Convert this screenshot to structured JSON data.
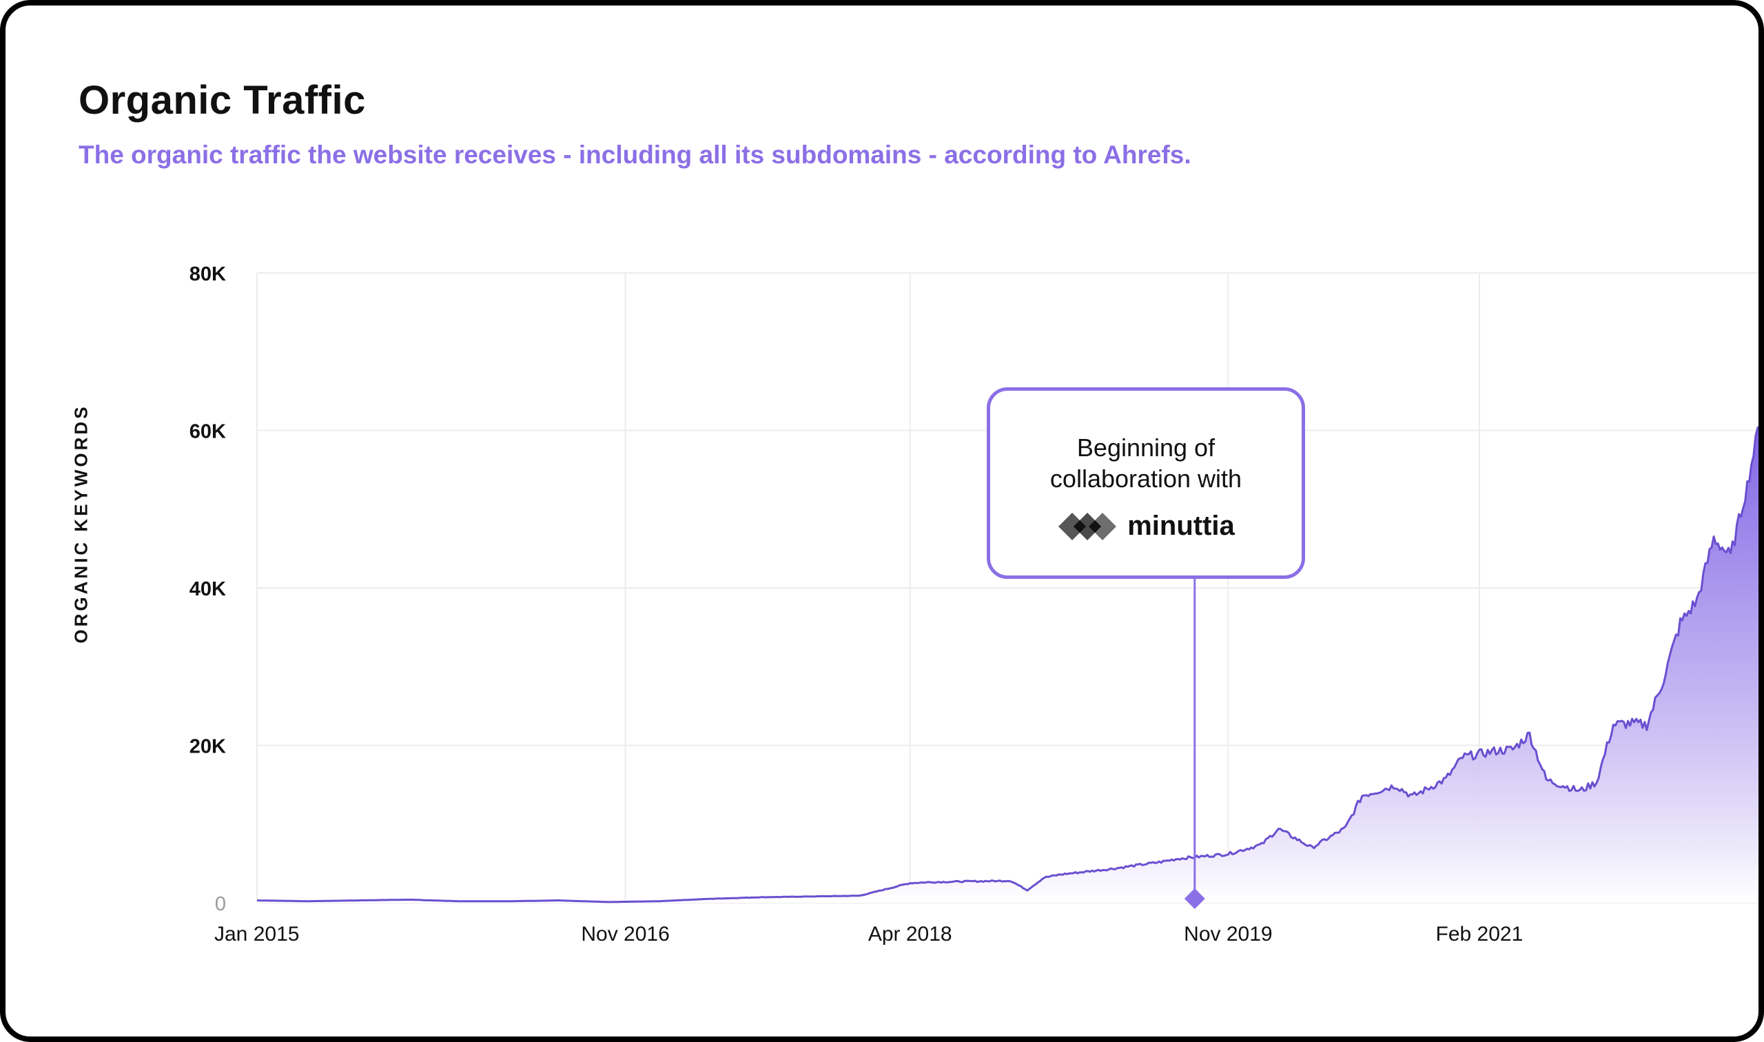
{
  "header": {
    "title": "Organic Traffic",
    "subtitle": "The organic traffic the website receives - including all its subdomains - according to Ahrefs."
  },
  "annotation": {
    "text": "Beginning of collaboration with",
    "logo_text": "minuttia",
    "date": "2019-09"
  },
  "colors": {
    "accent": "#8b6fe6",
    "line": "#6a4fd0",
    "grid": "#ececec"
  },
  "chart_data": {
    "type": "area",
    "title": "Organic Traffic",
    "subtitle": "The organic traffic the website receives - including all its subdomains - according to Ahrefs.",
    "xlabel": "",
    "ylabel": "ORGANIC KEYWORDS",
    "ylim": [
      0,
      80000
    ],
    "y_ticks": [
      0,
      20000,
      40000,
      60000,
      80000
    ],
    "y_tick_labels": [
      "0",
      "20K",
      "40K",
      "60K",
      "80K"
    ],
    "x_ticks": [
      "2015-01",
      "2016-11",
      "2018-04",
      "2019-11",
      "2021-02"
    ],
    "x_tick_labels": [
      "Jan 2015",
      "Nov 2016",
      "Apr 2018",
      "Nov 2019",
      "Feb 2021"
    ],
    "xlim": [
      "2015-01",
      "2022-07"
    ],
    "grid": true,
    "legend": "none",
    "series": [
      {
        "x": [
          "2015-01",
          "2015-04",
          "2015-07",
          "2015-10",
          "2016-01",
          "2016-04",
          "2016-07",
          "2016-10",
          "2017-01",
          "2017-04",
          "2017-07",
          "2017-10",
          "2018-01",
          "2018-04",
          "2018-05",
          "2018-07",
          "2018-10",
          "2018-11",
          "2018-12",
          "2019-01",
          "2019-04",
          "2019-07",
          "2019-08",
          "2019-09",
          "2019-11",
          "2020-01",
          "2020-02",
          "2020-04",
          "2020-06",
          "2020-07",
          "2020-09",
          "2020-10",
          "2020-12",
          "2021-01",
          "2021-03",
          "2021-04",
          "2021-05",
          "2021-06",
          "2021-08",
          "2021-09",
          "2021-10",
          "2021-11",
          "2021-12",
          "2022-01",
          "2022-02",
          "2022-03",
          "2022-04",
          "2022-05",
          "2022-06",
          "2022-07"
        ],
        "values": [
          300,
          200,
          300,
          400,
          200,
          200,
          300,
          100,
          200,
          500,
          700,
          800,
          900,
          2500,
          2600,
          2700,
          2800,
          1600,
          3200,
          3600,
          4300,
          5200,
          5600,
          5800,
          6200,
          7400,
          9400,
          7000,
          9500,
          13600,
          14900,
          13500,
          15700,
          18500,
          19300,
          19500,
          21400,
          15600,
          14200,
          15300,
          22600,
          22800,
          22600,
          28400,
          35500,
          38400,
          46300,
          44000,
          53000,
          64000
        ]
      }
    ]
  }
}
